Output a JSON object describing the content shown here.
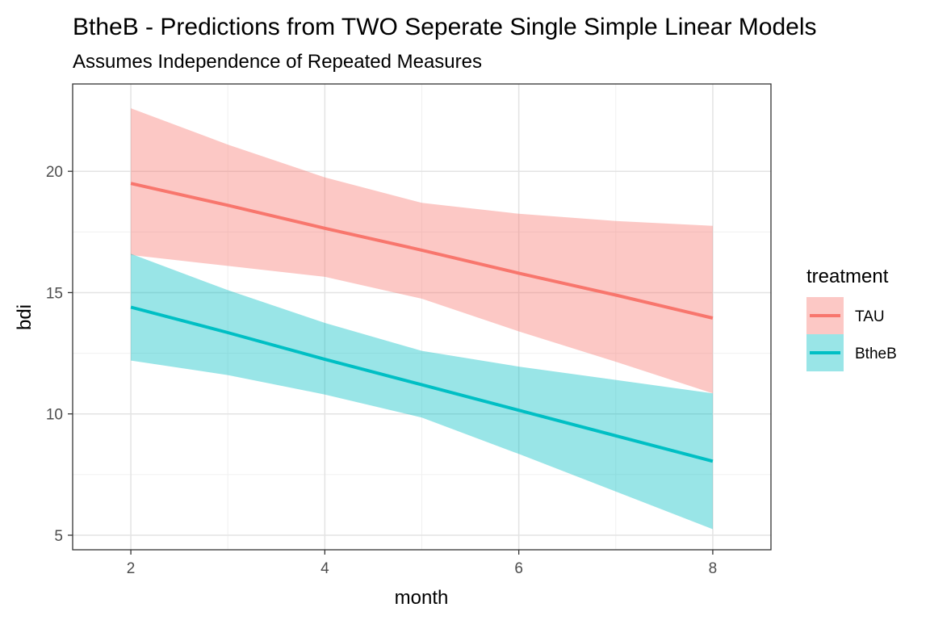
{
  "chart_data": {
    "type": "line",
    "title": "BtheB - Predictions from TWO Seperate Single Simple Linear Models",
    "subtitle": "Assumes Independence of Repeated Measures",
    "xlabel": "month",
    "ylabel": "bdi",
    "xlim": [
      1.4,
      8.6
    ],
    "ylim": [
      4.4,
      23.6
    ],
    "x_ticks": [
      2,
      4,
      6,
      8
    ],
    "y_ticks": [
      5,
      10,
      15,
      20
    ],
    "grid": true,
    "legend": {
      "title": "treatment",
      "placement": "right"
    },
    "series": [
      {
        "name": "TAU",
        "color": "#F8766D",
        "x": [
          2,
          3,
          4,
          5,
          6,
          7,
          8
        ],
        "fit": [
          19.5,
          18.6,
          17.65,
          16.75,
          15.8,
          14.9,
          13.95
        ],
        "lower": [
          16.55,
          16.1,
          15.65,
          14.75,
          13.4,
          12.15,
          10.85
        ],
        "upper": [
          22.6,
          21.1,
          19.75,
          18.7,
          18.25,
          17.95,
          17.75
        ]
      },
      {
        "name": "BtheB",
        "color": "#00BFC4",
        "x": [
          2,
          3,
          4,
          5,
          6,
          7,
          8
        ],
        "fit": [
          14.4,
          13.35,
          12.25,
          11.2,
          10.15,
          9.1,
          8.05
        ],
        "lower": [
          12.2,
          11.6,
          10.8,
          9.85,
          8.35,
          6.8,
          5.25
        ],
        "upper": [
          16.6,
          15.1,
          13.75,
          12.6,
          11.95,
          11.4,
          10.85
        ]
      }
    ]
  }
}
